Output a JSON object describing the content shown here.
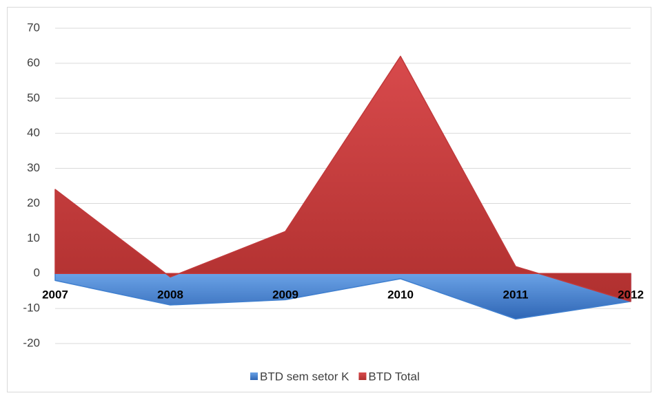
{
  "chart_data": {
    "type": "area",
    "categories": [
      "2007",
      "2008",
      "2009",
      "2010",
      "2011",
      "2012"
    ],
    "series": [
      {
        "name": "BTD sem setor K",
        "color": "#3f7fcf",
        "values": [
          -2,
          -9,
          -7.5,
          -1.5,
          -13,
          -8
        ]
      },
      {
        "name": "BTD Total",
        "color": "#c0393b",
        "values": [
          24,
          -1,
          12,
          62,
          2,
          -8
        ]
      }
    ],
    "ylim": [
      -20,
      70
    ],
    "yticks": [
      -20,
      -10,
      0,
      10,
      20,
      30,
      40,
      50,
      60,
      70
    ],
    "grid": true,
    "legend": "bottom"
  }
}
